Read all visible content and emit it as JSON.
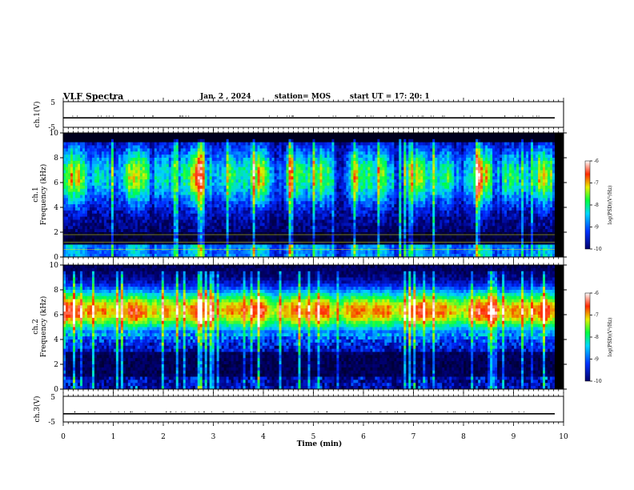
{
  "header": {
    "title": "VLF Spectra",
    "date": "Jan. 2 , 2024",
    "station": "station= MOS",
    "start": "start UT = 17: 20: 1"
  },
  "chart_data": [
    {
      "type": "line",
      "ylabel": "ch.1(V)",
      "ylim": [
        -5,
        5
      ],
      "yticks": [
        "5",
        "-5"
      ],
      "xlim": [
        0,
        10
      ],
      "series": [
        {
          "values_level": -1.3
        }
      ]
    },
    {
      "type": "heatmap",
      "ylabel": "ch.1\nFrequency (kHz)",
      "ylabel_lines": [
        "ch.1",
        "Frequency (kHz)"
      ],
      "ylim": [
        0,
        10
      ],
      "yticks": [
        "0",
        "2",
        "4",
        "6",
        "8",
        "10"
      ],
      "xlim": [
        0,
        10
      ],
      "colorbar": {
        "label": "log(PSD)(V²/Hz)",
        "range": [
          -10,
          -6
        ],
        "ticks": [
          "-6",
          "-7",
          "-8",
          "-9",
          "-10"
        ]
      },
      "band_center_khz": 6.5,
      "background_level": -9.6,
      "lines_khz": [
        0.6,
        1.2,
        1.8
      ]
    },
    {
      "type": "heatmap",
      "ylabel_lines": [
        "ch.2",
        "Frequency (kHz)"
      ],
      "ylim": [
        0,
        10
      ],
      "yticks": [
        "0",
        "2",
        "4",
        "6",
        "8",
        "10"
      ],
      "xlim": [
        0,
        10
      ],
      "colorbar": {
        "label": "log(PSD)(V²/Hz)",
        "range": [
          -10,
          -6
        ],
        "ticks": [
          "-6",
          "-7",
          "-8",
          "-9",
          "-10"
        ]
      },
      "band_center_khz": 6.3,
      "background_level": -9.7
    },
    {
      "type": "line",
      "ylabel": "ch.3(V)",
      "ylim": [
        -5,
        5
      ],
      "yticks": [
        "5",
        "-5"
      ],
      "xlim": [
        0,
        10
      ],
      "xlabel": "Time (min)",
      "xticks": [
        "0",
        "1",
        "2",
        "3",
        "4",
        "5",
        "6",
        "7",
        "8",
        "9",
        "10"
      ],
      "series": [
        {
          "values_level": -1.8
        }
      ]
    }
  ]
}
